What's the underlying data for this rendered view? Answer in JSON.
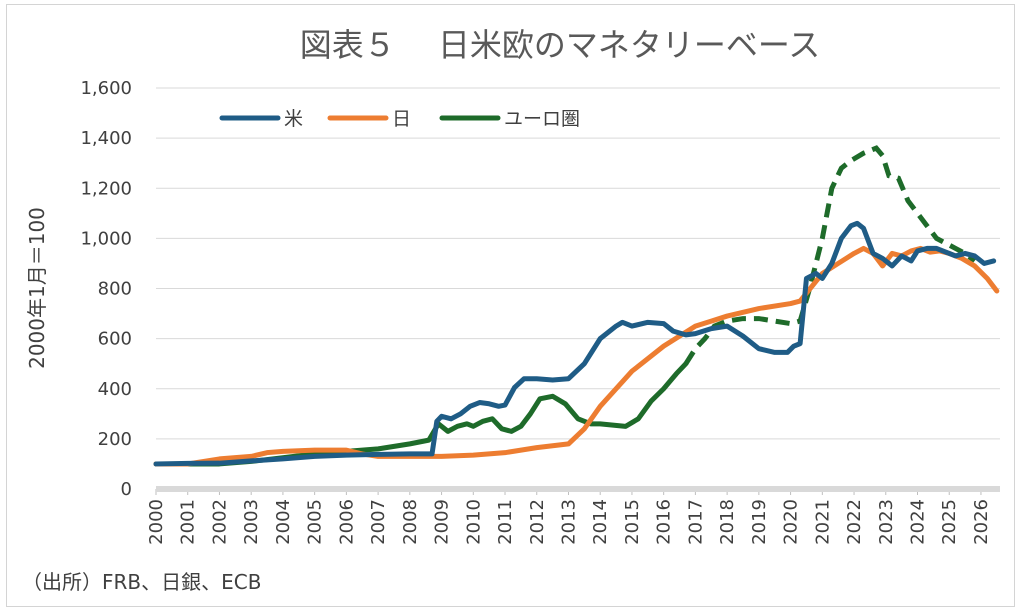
{
  "chart_data": {
    "type": "line",
    "title": "図表５　 日米欧のマネタリーベース",
    "ylabel": "2000年1月＝100",
    "xlabel": "",
    "ylim": [
      0,
      1600
    ],
    "xlim": [
      2000,
      2026.6
    ],
    "y_ticks": [
      "0",
      "200",
      "400",
      "600",
      "800",
      "1,000",
      "1,200",
      "1,400",
      "1,600"
    ],
    "y_tick_values": [
      0,
      200,
      400,
      600,
      800,
      1000,
      1200,
      1400,
      1600
    ],
    "x_ticks": [
      "2000",
      "2001",
      "2002",
      "2003",
      "2004",
      "2005",
      "2006",
      "2007",
      "2008",
      "2009",
      "2010",
      "2011",
      "2012",
      "2013",
      "2014",
      "2015",
      "2016",
      "2017",
      "2018",
      "2019",
      "2020",
      "2021",
      "2022",
      "2023",
      "2024",
      "2025",
      "2026"
    ],
    "grid": true,
    "legend_position": "top-left",
    "series": [
      {
        "name": "米",
        "color": "#1f5c86",
        "style": "solid",
        "x": [
          2000,
          2001,
          2002,
          2003,
          2004,
          2005,
          2006,
          2007,
          2008,
          2008.7,
          2008.85,
          2009.0,
          2009.3,
          2009.6,
          2009.9,
          2010.2,
          2010.5,
          2010.8,
          2011.0,
          2011.3,
          2011.6,
          2012.0,
          2012.5,
          2013.0,
          2013.5,
          2014.0,
          2014.5,
          2014.7,
          2015.0,
          2015.5,
          2016.0,
          2016.3,
          2016.7,
          2017.0,
          2017.5,
          2018.0,
          2018.5,
          2019.0,
          2019.5,
          2019.9,
          2020.1,
          2020.3,
          2020.5,
          2020.8,
          2021.0,
          2021.3,
          2021.6,
          2021.9,
          2022.1,
          2022.3,
          2022.6,
          2022.9,
          2023.2,
          2023.5,
          2023.8,
          2024.0,
          2024.3,
          2024.6,
          2024.9,
          2025.2,
          2025.5,
          2025.8,
          2026.1,
          2026.4
        ],
        "y": [
          100,
          102,
          103,
          112,
          120,
          130,
          135,
          138,
          140,
          140,
          270,
          290,
          280,
          300,
          330,
          345,
          340,
          330,
          335,
          405,
          440,
          440,
          435,
          440,
          500,
          600,
          650,
          665,
          650,
          665,
          660,
          630,
          615,
          620,
          640,
          650,
          610,
          560,
          545,
          545,
          570,
          580,
          840,
          860,
          840,
          900,
          1000,
          1050,
          1060,
          1040,
          940,
          920,
          890,
          930,
          910,
          950,
          960,
          960,
          945,
          930,
          940,
          930,
          900,
          910
        ]
      },
      {
        "name": "日",
        "color": "#ed7d31",
        "style": "solid",
        "x": [
          2000,
          2001,
          2001.5,
          2002,
          2002.5,
          2003,
          2003.5,
          2004,
          2005,
          2006,
          2006.5,
          2007,
          2008,
          2009,
          2010,
          2011,
          2012,
          2013,
          2013.5,
          2014,
          2015,
          2016,
          2017,
          2017.5,
          2018,
          2019,
          2020,
          2020.3,
          2021,
          2021.5,
          2022,
          2022.3,
          2022.6,
          2022.9,
          2023.2,
          2023.5,
          2023.8,
          2024.1,
          2024.4,
          2024.7,
          2025.0,
          2025.4,
          2025.8,
          2026.2,
          2026.5
        ],
        "y": [
          100,
          100,
          110,
          120,
          125,
          130,
          145,
          150,
          155,
          155,
          140,
          130,
          130,
          130,
          135,
          145,
          165,
          180,
          240,
          330,
          470,
          570,
          650,
          670,
          690,
          720,
          740,
          750,
          860,
          900,
          940,
          960,
          940,
          890,
          940,
          930,
          950,
          960,
          945,
          950,
          940,
          920,
          890,
          840,
          790
        ]
      },
      {
        "name": "ユーロ圏",
        "color": "#1e6b2a",
        "style": "solid-then-dashed",
        "dash_from": 2016.7,
        "x": [
          2000,
          2001,
          2002,
          2003,
          2004,
          2005,
          2006,
          2007,
          2008,
          2008.6,
          2008.9,
          2009.2,
          2009.5,
          2009.8,
          2010.0,
          2010.3,
          2010.6,
          2010.9,
          2011.2,
          2011.5,
          2011.8,
          2012.1,
          2012.5,
          2012.9,
          2013.3,
          2013.7,
          2014.0,
          2014.4,
          2014.8,
          2015.2,
          2015.6,
          2016.0,
          2016.4,
          2016.7,
          2017.0,
          2017.3,
          2017.6,
          2018.0,
          2018.5,
          2019.0,
          2019.5,
          2020.0,
          2020.3,
          2020.6,
          2021.0,
          2021.3,
          2021.6,
          2021.9,
          2022.3,
          2022.7,
          2022.9,
          2023.1,
          2023.4,
          2023.7,
          2024.0,
          2024.3,
          2024.6,
          2024.9,
          2025.2,
          2025.5,
          2025.8
        ],
        "y": [
          100,
          100,
          100,
          110,
          125,
          140,
          150,
          160,
          180,
          195,
          260,
          230,
          250,
          260,
          250,
          270,
          280,
          240,
          230,
          250,
          300,
          360,
          370,
          340,
          280,
          260,
          260,
          255,
          250,
          280,
          350,
          400,
          460,
          500,
          560,
          600,
          650,
          670,
          680,
          680,
          670,
          660,
          670,
          800,
          1000,
          1200,
          1280,
          1310,
          1340,
          1360,
          1330,
          1250,
          1240,
          1150,
          1100,
          1050,
          1000,
          980,
          960,
          940,
          910
        ]
      }
    ],
    "source": "（出所）FRB、日銀、ECB"
  }
}
